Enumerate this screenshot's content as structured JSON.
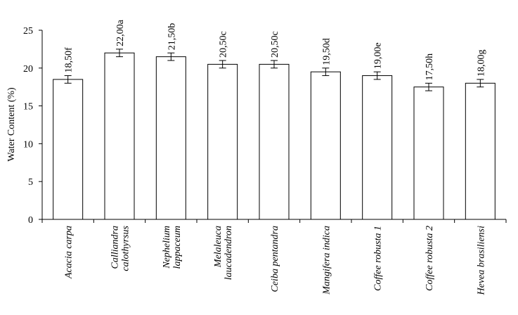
{
  "chart_data": {
    "type": "bar",
    "ylabel": "Water Content  (%)",
    "xlabel": "",
    "ylim": [
      0,
      25
    ],
    "yticks": [
      0,
      5,
      10,
      15,
      20,
      25
    ],
    "grid": false,
    "categories": [
      [
        "Acacia carpa"
      ],
      [
        "Calliandra",
        "calothyrsus"
      ],
      [
        "Nephelium",
        "lappaceum"
      ],
      [
        "Melaleuca",
        "laucadendron"
      ],
      [
        "Ceiba pentandra"
      ],
      [
        "Mangifera indica"
      ],
      [
        "Coffee robusta 1"
      ],
      [
        "Coffee robusta 2"
      ],
      [
        "Hevea brasiliensi"
      ]
    ],
    "values": [
      18.5,
      22.0,
      21.5,
      20.5,
      20.5,
      19.5,
      19.0,
      17.5,
      18.0
    ],
    "error": [
      0.5,
      0.5,
      0.5,
      0.5,
      0.5,
      0.5,
      0.5,
      0.5,
      0.5
    ],
    "data_labels": [
      "18,50f",
      "22,00a",
      "21,50b",
      "20,50c",
      "20,50c",
      "19,50d",
      "19,00e",
      "17,50h",
      "18,00g"
    ],
    "colors": {
      "bar_fill": "#ffffff",
      "bar_stroke": "#000000",
      "axis": "#000000"
    }
  }
}
